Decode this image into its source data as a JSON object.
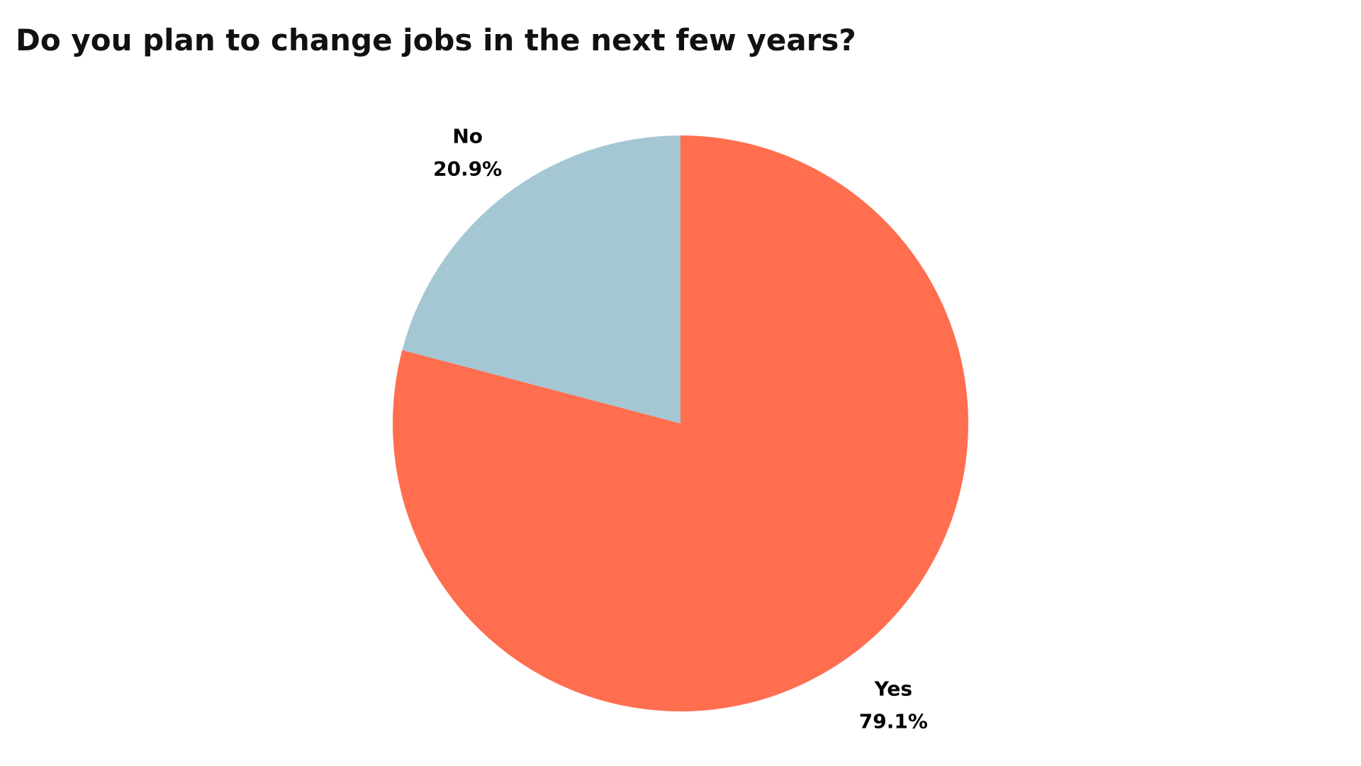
{
  "chart_data": {
    "type": "pie",
    "title": "Do you plan to change jobs in the next few years?",
    "slices": [
      {
        "label": "Yes",
        "value": 79.1,
        "display": "79.1%",
        "color": "#FF6E4F"
      },
      {
        "label": "No",
        "value": 20.9,
        "display": "20.9%",
        "color": "#A5C7D4"
      }
    ],
    "start_angle_deg": 0,
    "direction": "clockwise",
    "legend": "none"
  }
}
